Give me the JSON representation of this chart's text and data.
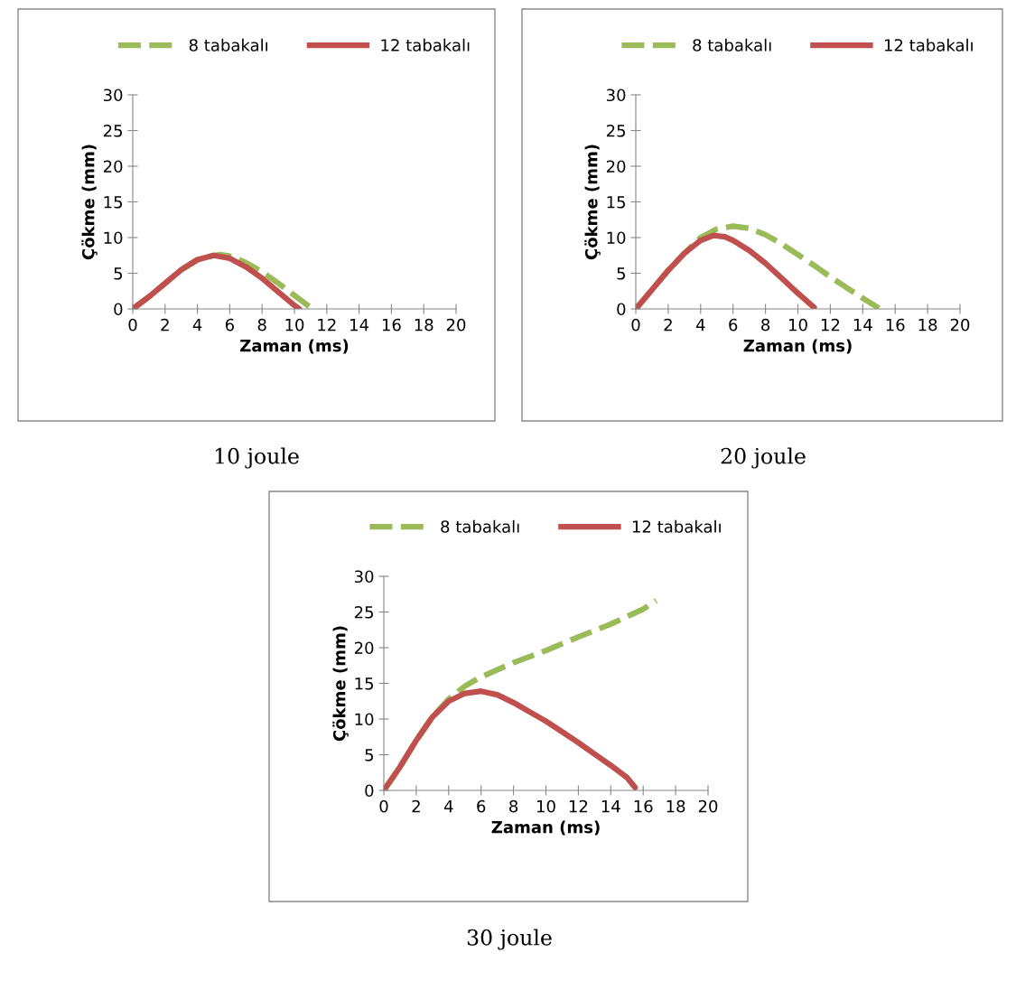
{
  "chart_data": [
    {
      "type": "line",
      "xlabel": "Zaman (ms)",
      "ylabel": "Çökme (mm)",
      "xlim": [
        0,
        20
      ],
      "ylim": [
        0,
        30
      ],
      "xticks": [
        0,
        2,
        4,
        6,
        8,
        10,
        12,
        14,
        16,
        18,
        20
      ],
      "yticks": [
        0,
        5,
        10,
        15,
        20,
        25,
        30
      ],
      "grid": false,
      "legend": "top",
      "marker": "none",
      "annotations": [
        "10 joule"
      ],
      "series": [
        {
          "name": "8 tabakalı",
          "color": "#9bbb59",
          "line_style": "dashed",
          "x": [
            0,
            1,
            2,
            3,
            4,
            5,
            5.5,
            6,
            7,
            8,
            9,
            10,
            11,
            11.2
          ],
          "values": [
            0,
            1.7,
            3.6,
            5.5,
            6.9,
            7.5,
            7.6,
            7.4,
            6.5,
            5.2,
            3.6,
            1.9,
            0.2,
            0
          ]
        },
        {
          "name": "12 tabakalı",
          "color": "#c0504d",
          "line_style": "solid",
          "x": [
            0,
            1,
            2,
            3,
            4,
            5,
            6,
            7,
            8,
            9,
            10,
            10.3
          ],
          "values": [
            0,
            1.7,
            3.6,
            5.5,
            6.9,
            7.5,
            7.1,
            5.9,
            4.3,
            2.4,
            0.5,
            0
          ]
        }
      ]
    },
    {
      "type": "line",
      "xlabel": "Zaman (ms)",
      "ylabel": "Çökme (mm)",
      "xlim": [
        0,
        20
      ],
      "ylim": [
        0,
        30
      ],
      "xticks": [
        0,
        2,
        4,
        6,
        8,
        10,
        12,
        14,
        16,
        18,
        20
      ],
      "yticks": [
        0,
        5,
        10,
        15,
        20,
        25,
        30
      ],
      "grid": false,
      "legend": "top",
      "marker": "none",
      "annotations": [
        "20 joule"
      ],
      "series": [
        {
          "name": "8 tabakalı",
          "color": "#9bbb59",
          "line_style": "dashed",
          "x": [
            0,
            1,
            2,
            3,
            4,
            5,
            6,
            7,
            8,
            9,
            10,
            11,
            12,
            13,
            14,
            15
          ],
          "values": [
            0,
            2.7,
            5.4,
            7.8,
            10,
            11.2,
            11.6,
            11.3,
            10.4,
            9.1,
            7.6,
            6.1,
            4.5,
            3,
            1.5,
            0.1
          ]
        },
        {
          "name": "12 tabakalı",
          "color": "#c0504d",
          "line_style": "solid",
          "x": [
            0,
            1,
            2,
            3,
            4,
            4.8,
            5.5,
            6,
            7,
            8,
            9,
            10,
            11
          ],
          "values": [
            0,
            2.7,
            5.4,
            7.8,
            9.6,
            10.3,
            10.1,
            9.6,
            8.2,
            6.4,
            4.3,
            2.2,
            0.2
          ]
        }
      ]
    },
    {
      "type": "line",
      "xlabel": "Zaman (ms)",
      "ylabel": "Çökme (mm)",
      "xlim": [
        0,
        20
      ],
      "ylim": [
        0,
        30
      ],
      "xticks": [
        0,
        2,
        4,
        6,
        8,
        10,
        12,
        14,
        16,
        18,
        20
      ],
      "yticks": [
        0,
        5,
        10,
        15,
        20,
        25,
        30
      ],
      "grid": false,
      "legend": "top",
      "marker": "none",
      "annotations": [
        "30 joule"
      ],
      "series": [
        {
          "name": "8 tabakalı",
          "color": "#9bbb59",
          "line_style": "dashed",
          "x": [
            0,
            1,
            2,
            3,
            4,
            5,
            6,
            8,
            10,
            12,
            14,
            16,
            16.8
          ],
          "values": [
            0,
            3.3,
            7,
            10.3,
            12.8,
            14.6,
            15.9,
            17.9,
            19.6,
            21.5,
            23.3,
            25.4,
            26.6
          ]
        },
        {
          "name": "12 tabakalı",
          "color": "#c0504d",
          "line_style": "solid",
          "x": [
            0,
            1,
            2,
            3,
            4,
            5,
            6,
            7,
            8,
            9,
            10,
            11,
            12,
            13,
            14,
            15,
            15.5
          ],
          "values": [
            0,
            3.3,
            7,
            10.3,
            12.5,
            13.6,
            13.9,
            13.4,
            12.3,
            11,
            9.7,
            8.2,
            6.7,
            5.1,
            3.5,
            1.8,
            0.4
          ]
        }
      ]
    }
  ]
}
